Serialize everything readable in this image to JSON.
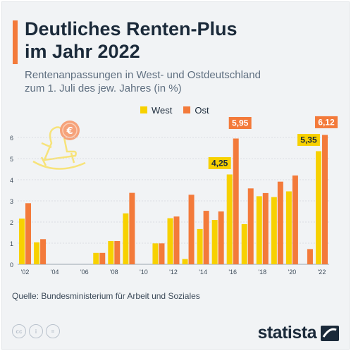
{
  "header": {
    "title_line1": "Deutliches Renten-Plus",
    "title_line2": "im Jahr 2022",
    "subtitle_line1": "Rentenanpassungen in West- und Ostdeutschland",
    "subtitle_line2": "zum 1. Juli des jew. Jahres (in %)"
  },
  "colors": {
    "west": "#f7d100",
    "ost": "#f37a3a",
    "accent": "#f37a3a",
    "text": "#1b2a3a"
  },
  "legend": {
    "west": "West",
    "ost": "Ost"
  },
  "icons": [
    "rocking-chair-icon",
    "euro-coin-icon",
    "cc-icon",
    "by-icon",
    "nd-icon",
    "statista-logo-icon"
  ],
  "footer": {
    "source": "Quelle: Bundesministerium für Arbeit und Soziales",
    "brand": "statista",
    "license": [
      "cc",
      "i",
      "="
    ]
  },
  "chart_data": {
    "type": "bar",
    "title": "Deutliches Renten-Plus im Jahr 2022",
    "x": [
      2002,
      2003,
      2004,
      2005,
      2006,
      2007,
      2008,
      2009,
      2010,
      2011,
      2012,
      2013,
      2014,
      2015,
      2016,
      2017,
      2018,
      2019,
      2020,
      2021,
      2022
    ],
    "tick_labels": [
      "'02",
      "'04",
      "'06",
      "'08",
      "'10",
      "'12",
      "'14",
      "'16",
      "'18",
      "'20",
      "'22"
    ],
    "series": [
      {
        "name": "West",
        "values": [
          2.16,
          1.04,
          0,
          0,
          0,
          0.54,
          1.1,
          2.41,
          0,
          0.99,
          2.18,
          0.25,
          1.67,
          2.1,
          4.25,
          1.9,
          3.22,
          3.18,
          3.45,
          0,
          5.35
        ]
      },
      {
        "name": "Ost",
        "values": [
          2.89,
          1.19,
          0,
          0,
          0,
          0.54,
          1.1,
          3.38,
          0,
          0.99,
          2.26,
          3.29,
          2.53,
          2.5,
          5.95,
          3.59,
          3.37,
          3.91,
          4.2,
          0.72,
          6.12
        ]
      }
    ],
    "annotations": [
      {
        "label": "4,25",
        "x": 2016,
        "series": "West"
      },
      {
        "label": "5,95",
        "x": 2016,
        "series": "Ost"
      },
      {
        "label": "5,35",
        "x": 2022,
        "series": "West"
      },
      {
        "label": "6,12",
        "x": 2022,
        "series": "Ost"
      }
    ],
    "ylim": [
      0,
      7
    ],
    "yticks": [
      0,
      1,
      2,
      3,
      4,
      5,
      6
    ],
    "grid": true,
    "legend_position": "top"
  }
}
